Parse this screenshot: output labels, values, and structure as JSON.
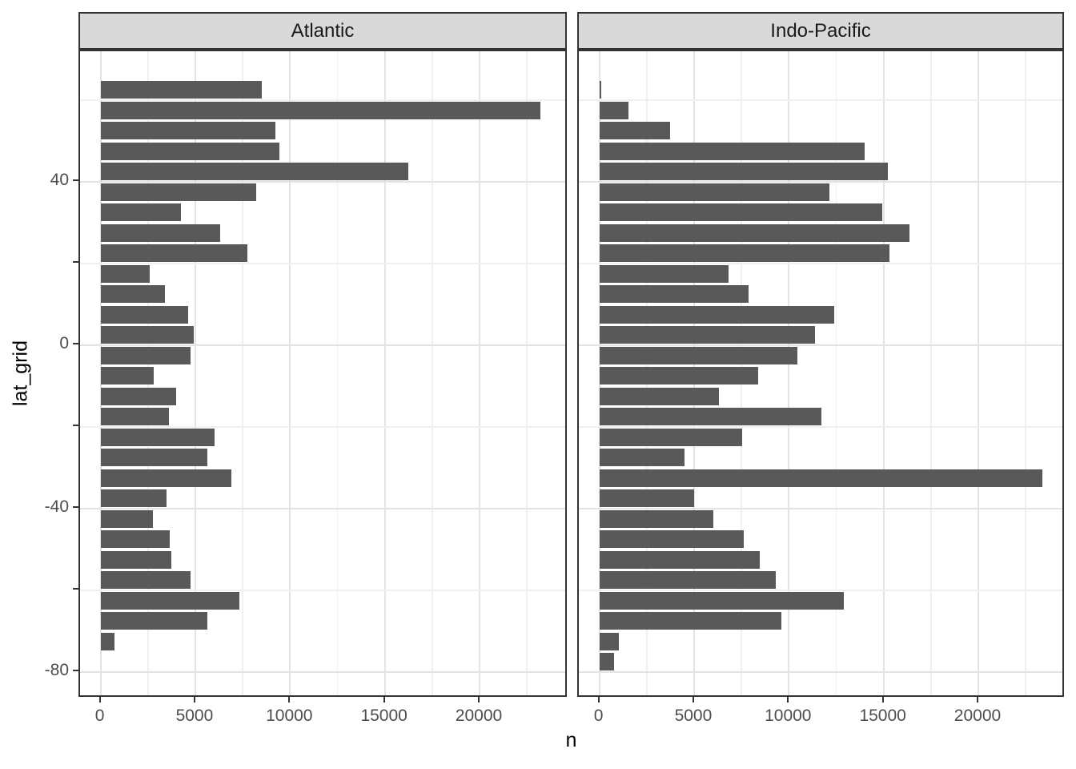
{
  "figure": {
    "x_axis": {
      "title": "n",
      "tick_values": [
        0,
        5000,
        10000,
        15000,
        20000
      ],
      "tick_labels": [
        "0",
        "5000",
        "10000",
        "15000",
        "20000"
      ],
      "minor_grid_values": [
        2500,
        7500,
        12500,
        17500,
        22500
      ]
    },
    "y_axis": {
      "title": "lat_grid",
      "labeled_tick_values": [
        40,
        0,
        -40,
        -80
      ],
      "tick_labels": [
        "40",
        "0",
        "-40",
        "-80"
      ],
      "tick_values": [
        40,
        20,
        0,
        -20,
        -40,
        -60,
        -80
      ],
      "grid_major_values": [
        40,
        0,
        -40,
        -80
      ],
      "grid_minor_values": [
        60,
        20,
        -20,
        -60
      ]
    },
    "colors": {
      "bar_fill": "#595959",
      "strip_background": "#d9d9d9",
      "panel_border": "#333333",
      "grid_major": "#e3e3e3",
      "grid_minor": "#f0f0f0",
      "tick_label": "#4d4d4d",
      "axis_title": "#000000"
    }
  },
  "chart_data": {
    "type": "bar",
    "orientation": "horizontal",
    "title": "",
    "xlabel": "n",
    "ylabel": "lat_grid",
    "xlim": [
      0,
      24500
    ],
    "facets": [
      "Atlantic",
      "Indo-Pacific"
    ],
    "categories": [
      62.5,
      57.5,
      52.5,
      47.5,
      42.5,
      37.5,
      32.5,
      27.5,
      22.5,
      17.5,
      12.5,
      7.5,
      2.5,
      -2.5,
      -7.5,
      -12.5,
      -17.5,
      -22.5,
      -27.5,
      -32.5,
      -37.5,
      -42.5,
      -47.5,
      -52.5,
      -57.5,
      -62.5,
      -67.5,
      -72.5,
      -77.5
    ],
    "series": [
      {
        "name": "Atlantic",
        "values": [
          8530,
          23210,
          9240,
          9450,
          16220,
          8200,
          4240,
          6300,
          7730,
          2590,
          3390,
          4620,
          4930,
          4740,
          2800,
          4000,
          3600,
          6010,
          5640,
          6910,
          3500,
          2770,
          3670,
          3740,
          4770,
          7330,
          5640,
          730,
          null
        ]
      },
      {
        "name": "Indo-Pacific",
        "values": [
          100,
          1520,
          3720,
          13980,
          15230,
          12130,
          14910,
          16350,
          15320,
          6810,
          7860,
          12380,
          11370,
          10450,
          8370,
          6330,
          11710,
          7540,
          4490,
          23390,
          4990,
          6030,
          7620,
          8450,
          9300,
          12900,
          9620,
          1050,
          760
        ]
      }
    ]
  }
}
